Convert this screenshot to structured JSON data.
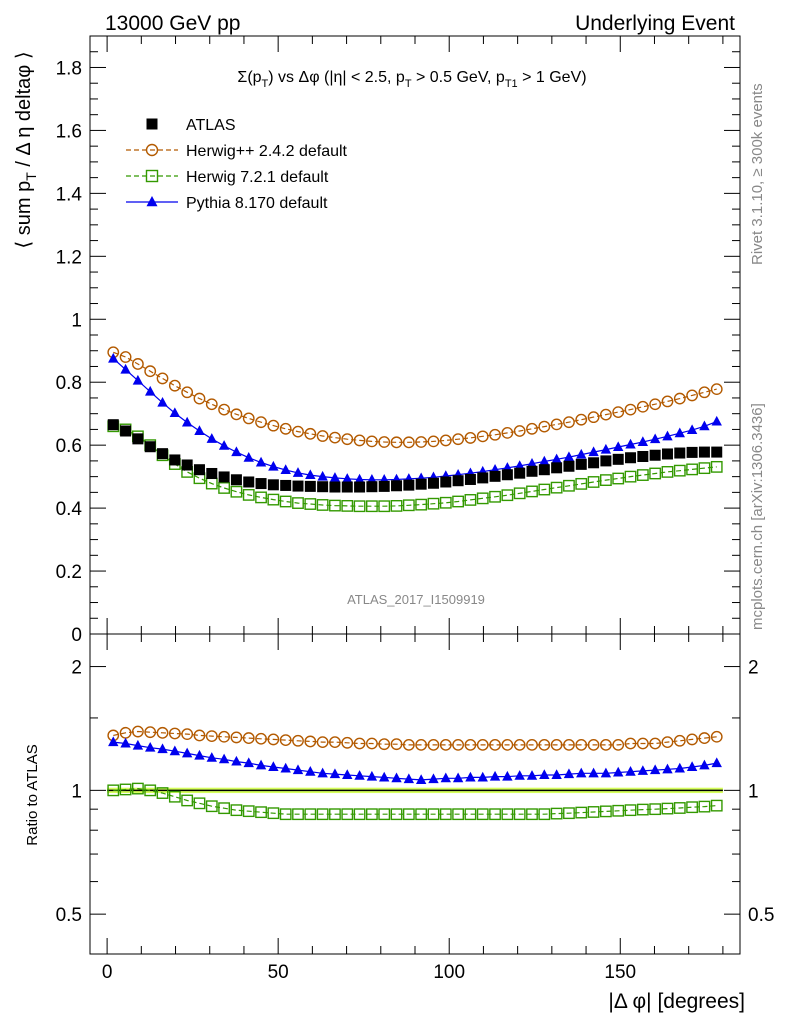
{
  "header": {
    "left": "13000 GeV pp",
    "right": "Underlying Event"
  },
  "side_labels": {
    "rivet": "Rivet 3.1.10, ≥ 300k events",
    "mcplots": "mcplots.cern.ch [arXiv:1306.3436]"
  },
  "analysis_id": "ATLAS_2017_I1509919",
  "chart_data": [
    {
      "type": "scatter",
      "title": "Σ(p_T) vs Δφ (|η| < 2.5, p_T > 0.5 GeV, p_T1 > 1 GeV)",
      "ylabel": "⟨ sum p_T / Δη deltaφ ⟩",
      "xlim": [
        -5,
        185
      ],
      "ylim": [
        0,
        1.9
      ],
      "xticks": [
        "0",
        "50",
        "100",
        "150"
      ],
      "yticks": [
        "0",
        "0.2",
        "0.4",
        "0.6",
        "0.8",
        "1",
        "1.2",
        "1.4",
        "1.6",
        "1.8"
      ],
      "legend_position": "top-left",
      "x": [
        1.8,
        5.4,
        9.0,
        12.6,
        16.2,
        19.8,
        23.4,
        27.0,
        30.6,
        34.2,
        37.8,
        41.4,
        45.0,
        48.6,
        52.2,
        55.8,
        59.4,
        63.0,
        66.6,
        70.2,
        73.8,
        77.4,
        81.0,
        84.6,
        88.2,
        91.8,
        95.4,
        99.0,
        102.6,
        106.2,
        109.8,
        113.4,
        117.0,
        120.6,
        124.2,
        127.8,
        131.4,
        135.0,
        138.6,
        142.2,
        145.8,
        149.4,
        153.0,
        156.6,
        160.2,
        163.8,
        167.4,
        171.0,
        174.6,
        178.2
      ],
      "series": [
        {
          "name": "ATLAS",
          "color": "#000000",
          "marker": "filled-square",
          "values": [
            0.665,
            0.645,
            0.62,
            0.595,
            0.573,
            0.553,
            0.537,
            0.522,
            0.51,
            0.499,
            0.49,
            0.483,
            0.478,
            0.474,
            0.472,
            0.47,
            0.469,
            0.468,
            0.467,
            0.467,
            0.467,
            0.468,
            0.469,
            0.471,
            0.473,
            0.476,
            0.479,
            0.483,
            0.487,
            0.491,
            0.496,
            0.501,
            0.506,
            0.511,
            0.517,
            0.522,
            0.528,
            0.533,
            0.539,
            0.544,
            0.55,
            0.555,
            0.56,
            0.564,
            0.568,
            0.572,
            0.575,
            0.577,
            0.578,
            0.578
          ]
        },
        {
          "name": "Herwig++ 2.4.2 default",
          "color": "#b35a00",
          "marker": "open-circle",
          "values": [
            0.895,
            0.88,
            0.858,
            0.835,
            0.812,
            0.789,
            0.768,
            0.748,
            0.73,
            0.713,
            0.698,
            0.685,
            0.673,
            0.662,
            0.652,
            0.643,
            0.636,
            0.629,
            0.624,
            0.619,
            0.615,
            0.612,
            0.61,
            0.609,
            0.609,
            0.61,
            0.612,
            0.615,
            0.619,
            0.623,
            0.628,
            0.633,
            0.639,
            0.645,
            0.652,
            0.659,
            0.666,
            0.673,
            0.681,
            0.689,
            0.697,
            0.705,
            0.713,
            0.722,
            0.73,
            0.739,
            0.748,
            0.758,
            0.768,
            0.778
          ]
        },
        {
          "name": "Herwig 7.2.1 default",
          "color": "#339900",
          "marker": "open-square",
          "values": [
            0.66,
            0.65,
            0.628,
            0.6,
            0.568,
            0.54,
            0.515,
            0.495,
            0.478,
            0.464,
            0.452,
            0.442,
            0.434,
            0.427,
            0.421,
            0.416,
            0.413,
            0.41,
            0.408,
            0.407,
            0.406,
            0.406,
            0.406,
            0.407,
            0.409,
            0.411,
            0.414,
            0.417,
            0.421,
            0.426,
            0.431,
            0.436,
            0.441,
            0.447,
            0.453,
            0.459,
            0.465,
            0.471,
            0.477,
            0.483,
            0.489,
            0.494,
            0.5,
            0.505,
            0.51,
            0.515,
            0.519,
            0.523,
            0.527,
            0.531
          ]
        },
        {
          "name": "Pythia 8.170 default",
          "color": "#0000ee",
          "marker": "filled-triangle",
          "values": [
            0.875,
            0.84,
            0.805,
            0.77,
            0.735,
            0.702,
            0.672,
            0.645,
            0.62,
            0.598,
            0.578,
            0.56,
            0.545,
            0.532,
            0.521,
            0.512,
            0.505,
            0.5,
            0.496,
            0.493,
            0.491,
            0.49,
            0.49,
            0.491,
            0.493,
            0.495,
            0.498,
            0.502,
            0.506,
            0.511,
            0.516,
            0.522,
            0.528,
            0.534,
            0.541,
            0.548,
            0.555,
            0.562,
            0.57,
            0.578,
            0.586,
            0.594,
            0.602,
            0.61,
            0.619,
            0.628,
            0.638,
            0.648,
            0.66,
            0.675
          ]
        }
      ]
    },
    {
      "type": "scatter",
      "ylabel": "Ratio to ATLAS",
      "xlabel": "|Δ φ| [degrees]",
      "xlim": [
        -5,
        185
      ],
      "ylim": [
        0.4,
        2.4
      ],
      "log_y": true,
      "yticks": [
        "0.5",
        "1",
        "2"
      ],
      "band": {
        "color": "#ccff33",
        "lower": 0.985,
        "upper": 1.015
      },
      "x": [
        1.8,
        5.4,
        9.0,
        12.6,
        16.2,
        19.8,
        23.4,
        27.0,
        30.6,
        34.2,
        37.8,
        41.4,
        45.0,
        48.6,
        52.2,
        55.8,
        59.4,
        63.0,
        66.6,
        70.2,
        73.8,
        77.4,
        81.0,
        84.6,
        88.2,
        91.8,
        95.4,
        99.0,
        102.6,
        106.2,
        109.8,
        113.4,
        117.0,
        120.6,
        124.2,
        127.8,
        131.4,
        135.0,
        138.6,
        142.2,
        145.8,
        149.4,
        153.0,
        156.6,
        160.2,
        163.8,
        167.4,
        171.0,
        174.6,
        178.2
      ],
      "series": [
        {
          "name": "Herwig++ 2.4.2 default",
          "color": "#b35a00",
          "marker": "open-circle",
          "values": [
            1.36,
            1.38,
            1.39,
            1.385,
            1.38,
            1.375,
            1.37,
            1.36,
            1.355,
            1.35,
            1.345,
            1.34,
            1.335,
            1.33,
            1.325,
            1.32,
            1.315,
            1.31,
            1.31,
            1.305,
            1.3,
            1.3,
            1.295,
            1.295,
            1.29,
            1.29,
            1.29,
            1.29,
            1.29,
            1.29,
            1.29,
            1.29,
            1.29,
            1.29,
            1.29,
            1.29,
            1.29,
            1.29,
            1.29,
            1.29,
            1.29,
            1.29,
            1.3,
            1.3,
            1.3,
            1.31,
            1.32,
            1.33,
            1.34,
            1.35
          ]
        },
        {
          "name": "Herwig 7.2.1 default",
          "color": "#339900",
          "marker": "open-square",
          "values": [
            1.0,
            1.005,
            1.01,
            1.0,
            0.985,
            0.965,
            0.945,
            0.93,
            0.915,
            0.905,
            0.895,
            0.89,
            0.885,
            0.88,
            0.875,
            0.875,
            0.875,
            0.875,
            0.875,
            0.875,
            0.875,
            0.875,
            0.875,
            0.875,
            0.875,
            0.875,
            0.875,
            0.875,
            0.875,
            0.875,
            0.875,
            0.875,
            0.875,
            0.875,
            0.875,
            0.875,
            0.878,
            0.88,
            0.883,
            0.886,
            0.889,
            0.892,
            0.895,
            0.898,
            0.9,
            0.903,
            0.906,
            0.91,
            0.913,
            0.918
          ]
        },
        {
          "name": "Pythia 8.170 default",
          "color": "#0000ee",
          "marker": "filled-triangle",
          "values": [
            1.31,
            1.3,
            1.285,
            1.27,
            1.26,
            1.245,
            1.23,
            1.215,
            1.2,
            1.19,
            1.175,
            1.165,
            1.15,
            1.14,
            1.13,
            1.12,
            1.11,
            1.1,
            1.095,
            1.09,
            1.085,
            1.08,
            1.075,
            1.07,
            1.065,
            1.06,
            1.065,
            1.07,
            1.07,
            1.075,
            1.075,
            1.08,
            1.08,
            1.085,
            1.085,
            1.09,
            1.09,
            1.095,
            1.1,
            1.1,
            1.1,
            1.105,
            1.11,
            1.115,
            1.12,
            1.125,
            1.13,
            1.14,
            1.15,
            1.165
          ]
        }
      ]
    }
  ]
}
